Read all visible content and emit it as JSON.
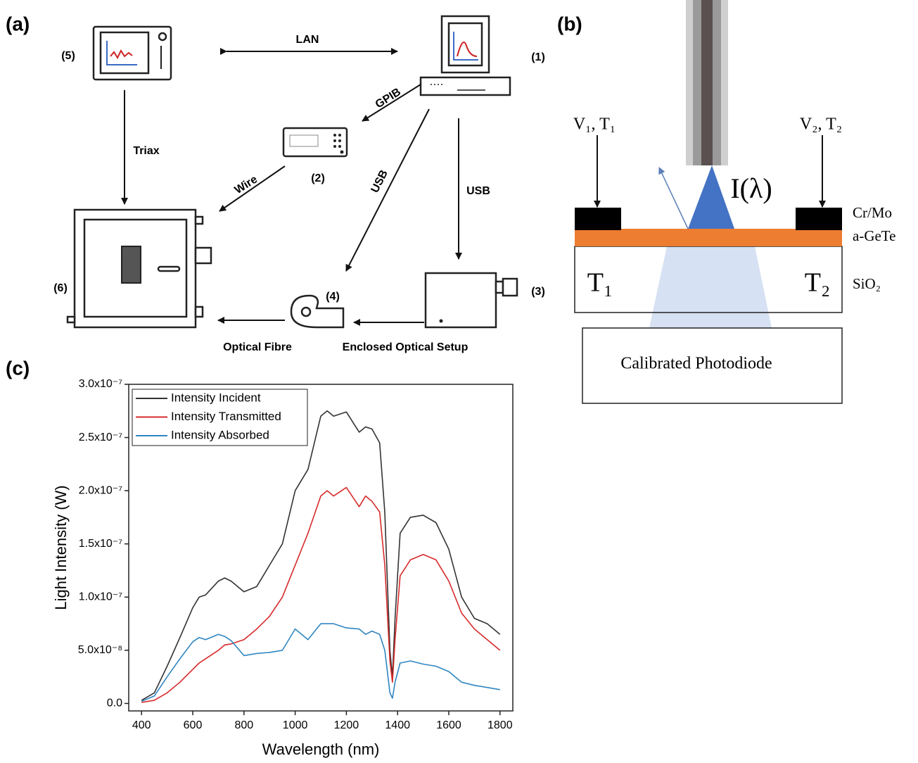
{
  "panel_a": {
    "label": "(a)",
    "nodes": [
      {
        "label": "(1)"
      },
      {
        "label": "(2)"
      },
      {
        "label": "(3)"
      },
      {
        "label": "(4)"
      },
      {
        "label": "(5)"
      },
      {
        "label": "(6)"
      }
    ],
    "edges": [
      {
        "label": "LAN"
      },
      {
        "label": "GPIB"
      },
      {
        "label": "Wire"
      },
      {
        "label": "USB"
      },
      {
        "label": "USB"
      },
      {
        "label": "Triax"
      },
      {
        "label": "Enclosed Optical Setup"
      },
      {
        "label": "Optical Fibre"
      }
    ]
  },
  "panel_b": {
    "label": "(b)",
    "contact_left": "V₁, T₁",
    "contact_right": "V₂, T₂",
    "beam": "I(λ)",
    "layers": [
      "Cr/Mo",
      "a-GeTe",
      "SiO₂"
    ],
    "t_left": "T₁",
    "t_right": "T₂",
    "detector": "Calibrated  Photodiode"
  },
  "panel_c": {
    "label": "(c)"
  },
  "chart_data": {
    "type": "line",
    "x_label": "Wavelength (nm)",
    "y_label": "Light Intensity (W)",
    "x": [
      400,
      450,
      500,
      550,
      600,
      625,
      650,
      700,
      725,
      750,
      800,
      850,
      900,
      950,
      1000,
      1050,
      1100,
      1125,
      1150,
      1200,
      1250,
      1275,
      1300,
      1330,
      1350,
      1370,
      1380,
      1390,
      1410,
      1450,
      1500,
      1550,
      1600,
      1650,
      1700,
      1750,
      1800
    ],
    "series": [
      {
        "name": "Intensity Incident",
        "color": "#333333",
        "values": [
          3e-09,
          1e-08,
          3.5e-08,
          6.2e-08,
          9e-08,
          1e-07,
          1.02e-07,
          1.15e-07,
          1.18e-07,
          1.15e-07,
          1.05e-07,
          1.1e-07,
          1.3e-07,
          1.5e-07,
          2e-07,
          2.2e-07,
          2.7e-07,
          2.75e-07,
          2.7e-07,
          2.74e-07,
          2.55e-07,
          2.6e-07,
          2.58e-07,
          2.45e-07,
          1.8e-07,
          5e-08,
          2.5e-08,
          8e-08,
          1.6e-07,
          1.75e-07,
          1.77e-07,
          1.7e-07,
          1.45e-07,
          1e-07,
          8e-08,
          7.5e-08,
          6.5e-08
        ]
      },
      {
        "name": "Intensity Transmitted",
        "color": "#d62b2b",
        "values": [
          1e-09,
          3e-09,
          1e-08,
          2e-08,
          3.2e-08,
          3.8e-08,
          4.2e-08,
          5e-08,
          5.5e-08,
          5.6e-08,
          6e-08,
          7e-08,
          8.2e-08,
          1e-07,
          1.3e-07,
          1.6e-07,
          1.95e-07,
          2e-07,
          1.95e-07,
          2.03e-07,
          1.85e-07,
          1.95e-07,
          1.9e-07,
          1.8e-07,
          1.3e-07,
          4e-08,
          2e-08,
          6e-08,
          1.2e-07,
          1.35e-07,
          1.4e-07,
          1.35e-07,
          1.15e-07,
          8.5e-08,
          7e-08,
          6e-08,
          5e-08
        ]
      },
      {
        "name": "Intensity Absorbed",
        "color": "#2e86c1",
        "values": [
          2e-09,
          7e-09,
          2.5e-08,
          4.2e-08,
          5.8e-08,
          6.2e-08,
          6e-08,
          6.5e-08,
          6.3e-08,
          5.9e-08,
          4.5e-08,
          4.7e-08,
          4.8e-08,
          5e-08,
          7e-08,
          6e-08,
          7.5e-08,
          7.5e-08,
          7.5e-08,
          7.1e-08,
          7e-08,
          6.5e-08,
          6.8e-08,
          6.5e-08,
          5e-08,
          1e-08,
          5e-09,
          2e-08,
          3.8e-08,
          4e-08,
          3.7e-08,
          3.5e-08,
          3e-08,
          2e-08,
          1.7e-08,
          1.5e-08,
          1.3e-08
        ]
      }
    ],
    "xlim": [
      350,
      1850
    ],
    "ylim": [
      -7e-09,
      3e-07
    ],
    "xticks": [
      400,
      600,
      800,
      1000,
      1200,
      1400,
      1600,
      1800
    ],
    "yticks": [
      {
        "value": 0,
        "label": "0.0"
      },
      {
        "value": 5e-08,
        "label": "5.0x10⁻⁸"
      },
      {
        "value": 1e-07,
        "label": "1.0x10⁻⁷"
      },
      {
        "value": 1.5e-07,
        "label": "1.5x10⁻⁷"
      },
      {
        "value": 2e-07,
        "label": "2.0x10⁻⁷"
      },
      {
        "value": 2.5e-07,
        "label": "2.5x10⁻⁷"
      },
      {
        "value": 3e-07,
        "label": "3.0x10⁻⁷"
      }
    ],
    "legend": "upper-left"
  }
}
